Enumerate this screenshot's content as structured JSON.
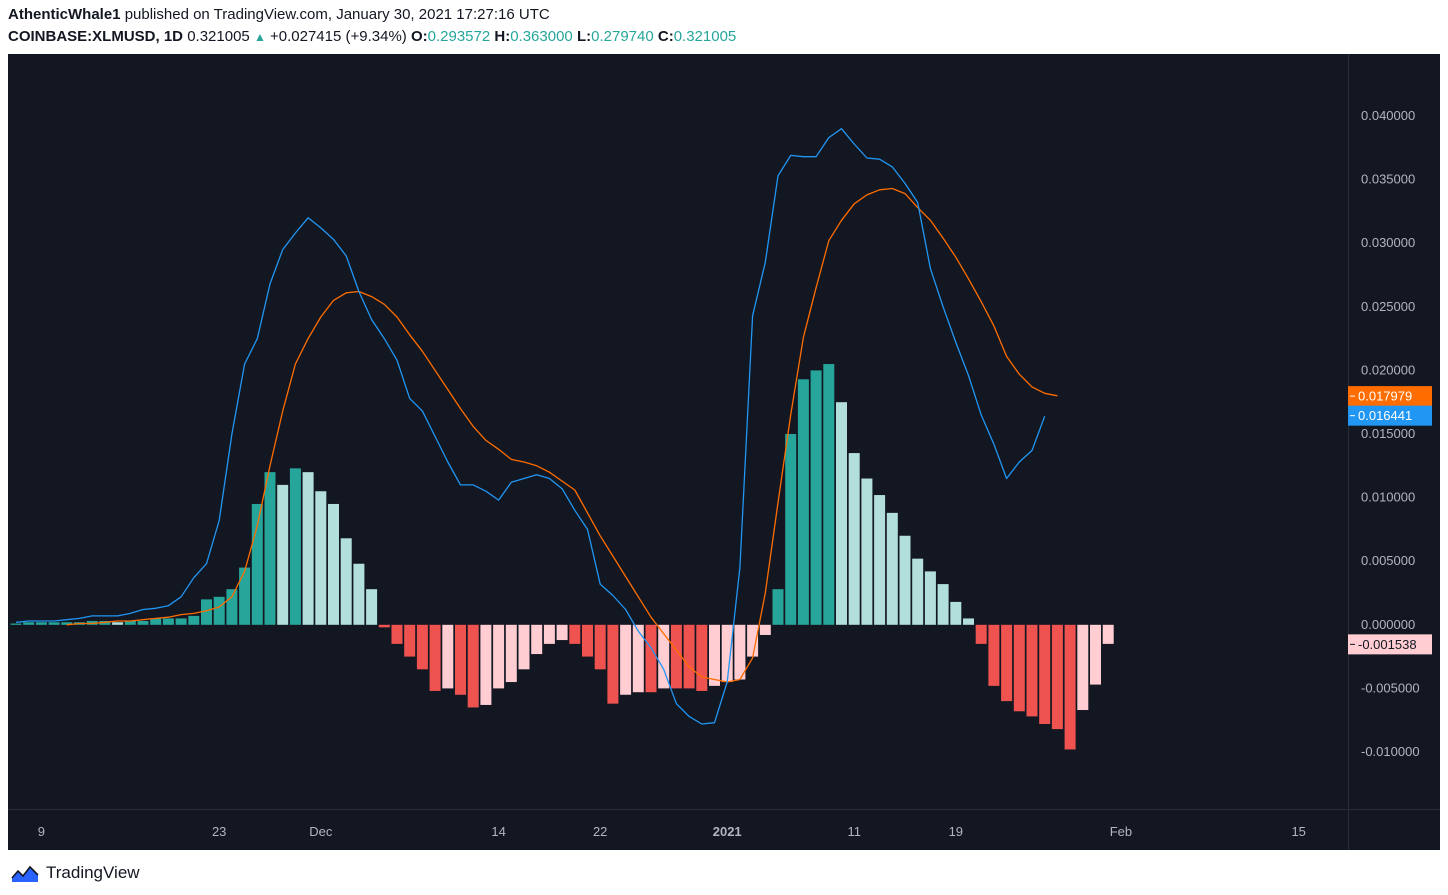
{
  "header": {
    "author": "AthenticWhale1",
    "published": "published on TradingView.com, January 30, 2021 17:27:16 UTC",
    "symbol": "COINBASE:XLMUSD, 1D",
    "last": "0.321005",
    "change_arrow": "▲",
    "change": "+0.027415 (+9.34%)",
    "o_label": "O:",
    "o_value": "0.293572",
    "h_label": "H:",
    "h_value": "0.363000",
    "l_label": "L:",
    "l_value": "0.279740",
    "c_label": "C:",
    "c_value": "0.321005"
  },
  "colors": {
    "background": "#131722",
    "axis_text": "#b2b5be",
    "macd_line": "#2196f3",
    "signal_line": "#ff6d00",
    "hist_pos_grow": "#26a69a",
    "hist_pos_fall": "#b2dfdb",
    "hist_neg_grow": "#ef5350",
    "hist_neg_fall": "#ffcdd2"
  },
  "chart_data": {
    "type": "macd",
    "title": "COINBASE:XLMUSD, 1D — MACD",
    "ylim": [
      -0.0145,
      0.0425
    ],
    "y_ticks": [
      "0.040000",
      "0.035000",
      "0.030000",
      "0.025000",
      "0.020000",
      "0.015000",
      "0.010000",
      "0.005000",
      "0.000000",
      "-0.005000",
      "-0.010000"
    ],
    "y_tick_values": [
      0.04,
      0.035,
      0.03,
      0.025,
      0.02,
      0.015,
      0.01,
      0.005,
      0.0,
      -0.005,
      -0.01
    ],
    "x_ticks": [
      {
        "label": "9",
        "index": 2,
        "bold": false
      },
      {
        "label": "23",
        "index": 16,
        "bold": false
      },
      {
        "label": "Dec",
        "index": 24,
        "bold": false
      },
      {
        "label": "14",
        "index": 38,
        "bold": false
      },
      {
        "label": "22",
        "index": 46,
        "bold": false
      },
      {
        "label": "2021",
        "index": 56,
        "bold": true
      },
      {
        "label": "11",
        "index": 66,
        "bold": false
      },
      {
        "label": "19",
        "index": 74,
        "bold": false
      },
      {
        "label": "Feb",
        "index": 87,
        "bold": false
      },
      {
        "label": "15",
        "index": 101,
        "bold": false
      }
    ],
    "bar_count": 87,
    "histogram": [
      0.0001,
      0.0002,
      0.0002,
      0.0002,
      0.0002,
      0.0002,
      0.0003,
      0.0003,
      0.0002,
      0.0003,
      0.0003,
      0.0005,
      0.0005,
      0.0005,
      0.0007,
      0.002,
      0.0022,
      0.0028,
      0.0045,
      0.0095,
      0.012,
      0.011,
      0.0123,
      0.012,
      0.0105,
      0.0095,
      0.0068,
      0.0048,
      0.0028,
      -0.0002,
      -0.0015,
      -0.0025,
      -0.0035,
      -0.0052,
      -0.005,
      -0.0055,
      -0.0065,
      -0.0063,
      -0.005,
      -0.0045,
      -0.0035,
      -0.0023,
      -0.0015,
      -0.0012,
      -0.0015,
      -0.0025,
      -0.0035,
      -0.0062,
      -0.0055,
      -0.0053,
      -0.0053,
      -0.005,
      -0.005,
      -0.005,
      -0.0052,
      -0.0048,
      -0.0045,
      -0.0043,
      -0.0025,
      -0.0008,
      0.0028,
      0.015,
      0.0193,
      0.02,
      0.0205,
      0.0175,
      0.0135,
      0.0115,
      0.0102,
      0.0088,
      0.007,
      0.0052,
      0.0042,
      0.0032,
      0.0018,
      0.0005,
      -0.0015,
      -0.0048,
      -0.006,
      -0.0068,
      -0.0072,
      -0.0078,
      -0.0082,
      -0.0098,
      -0.0067,
      -0.0047,
      -0.0015
    ],
    "macd": [
      0.0002,
      0.0003,
      0.0003,
      0.0003,
      0.0004,
      0.0005,
      0.0007,
      0.0007,
      0.0007,
      0.0009,
      0.0012,
      0.0013,
      0.0015,
      0.0022,
      0.0037,
      0.0048,
      0.0082,
      0.015,
      0.0205,
      0.0225,
      0.0268,
      0.0295,
      0.0308,
      0.032,
      0.0312,
      0.0303,
      0.029,
      0.0262,
      0.024,
      0.0225,
      0.0208,
      0.0178,
      0.0168,
      0.0148,
      0.0128,
      0.011,
      0.011,
      0.0105,
      0.0098,
      0.0112,
      0.0115,
      0.0118,
      0.0115,
      0.0107,
      0.009,
      0.0075,
      0.0032,
      0.0023,
      0.0012,
      -0.0005,
      -0.0018,
      -0.0035,
      -0.0062,
      -0.0072,
      -0.0078,
      -0.0077,
      -0.0045,
      0.0045,
      0.0243,
      0.0285,
      0.0353,
      0.0369,
      0.0368,
      0.0368,
      0.0383,
      0.039,
      0.0378,
      0.0367,
      0.0366,
      0.036,
      0.0347,
      0.0332,
      0.028,
      0.025,
      0.0222,
      0.0196,
      0.0165,
      0.0142,
      0.0115,
      0.0128,
      0.0137,
      0.0164
    ],
    "macd_offset": 0,
    "signal": [
      0.0,
      0.0001,
      0.0001,
      0.0002,
      0.0003,
      0.0003,
      0.0004,
      0.0005,
      0.0006,
      0.0008,
      0.0009,
      0.0011,
      0.0014,
      0.0022,
      0.0042,
      0.0078,
      0.0125,
      0.0168,
      0.0205,
      0.0225,
      0.0242,
      0.0255,
      0.0261,
      0.0262,
      0.0258,
      0.0252,
      0.0242,
      0.0228,
      0.0215,
      0.02,
      0.0185,
      0.017,
      0.0156,
      0.0145,
      0.0138,
      0.013,
      0.0128,
      0.0125,
      0.012,
      0.0113,
      0.0106,
      0.0088,
      0.007,
      0.0054,
      0.0038,
      0.0022,
      0.0006,
      -0.0007,
      -0.002,
      -0.0033,
      -0.0041,
      -0.0043,
      -0.0045,
      -0.0043,
      -0.0026,
      0.0025,
      0.0096,
      0.0165,
      0.0226,
      0.0265,
      0.0302,
      0.0318,
      0.0331,
      0.0338,
      0.0342,
      0.0343,
      0.0339,
      0.0328,
      0.0318,
      0.0304,
      0.0289,
      0.0272,
      0.0254,
      0.0235,
      0.0211,
      0.0197,
      0.0187,
      0.0182,
      0.018
    ],
    "signal_offset": 4,
    "last_macd": "0.016441",
    "last_signal": "0.017979",
    "last_hist": "-0.001538",
    "last_macd_value": 0.016441,
    "last_signal_value": 0.017979,
    "last_hist_value": -0.001538
  },
  "footer": {
    "brand": "TradingView"
  }
}
